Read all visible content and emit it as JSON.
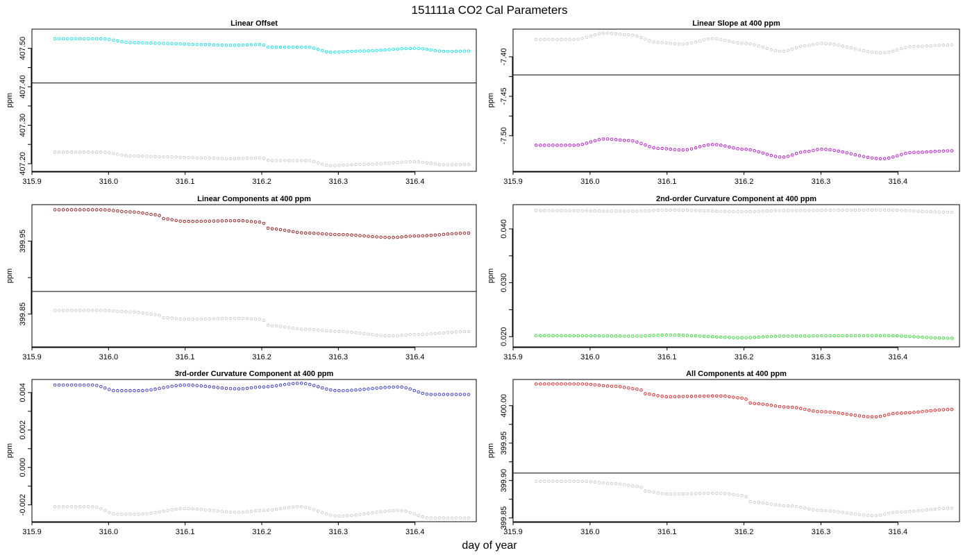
{
  "figure": {
    "title": "151111a   CO2 Cal Parameters",
    "xlabel": "day of year"
  },
  "colors": {
    "reference": "#c8c8c8",
    "frame": "#000000"
  },
  "chart_data": [
    {
      "type": "scatter",
      "title": "Linear Offset",
      "xlabel": "",
      "ylabel": "ppm",
      "xlim": [
        315.9,
        316.48
      ],
      "ylim": [
        407.18,
        407.55
      ],
      "xticks": [
        "315.9",
        "316.0",
        "316.1",
        "316.2",
        "316.3",
        "316.4"
      ],
      "yticks": [
        "407.20",
        "407.30",
        "407.40",
        "407.50"
      ],
      "hline": 407.41,
      "x_range": [
        315.93,
        316.47
      ],
      "n_points": 100,
      "series": [
        {
          "color": "#00e5ee",
          "knots": [
            [
              315.93,
              407.525
            ],
            [
              315.99,
              407.525
            ],
            [
              316.03,
              407.515
            ],
            [
              316.07,
              407.513
            ],
            [
              316.12,
              407.51
            ],
            [
              316.16,
              407.508
            ],
            [
              316.2,
              407.51
            ],
            [
              316.21,
              407.503
            ],
            [
              316.26,
              407.503
            ],
            [
              316.29,
              407.49
            ],
            [
              316.33,
              407.493
            ],
            [
              316.4,
              407.5
            ],
            [
              316.44,
              407.492
            ],
            [
              316.47,
              407.493
            ]
          ]
        },
        {
          "color": "#c8c8c8",
          "knots": [
            [
              315.93,
              407.23
            ],
            [
              315.99,
              407.23
            ],
            [
              316.03,
              407.22
            ],
            [
              316.07,
              407.218
            ],
            [
              316.12,
              407.215
            ],
            [
              316.16,
              407.213
            ],
            [
              316.2,
              407.215
            ],
            [
              316.21,
              407.208
            ],
            [
              316.26,
              407.208
            ],
            [
              316.29,
              407.195
            ],
            [
              316.33,
              407.198
            ],
            [
              316.4,
              407.205
            ],
            [
              316.44,
              407.197
            ],
            [
              316.47,
              407.198
            ]
          ]
        }
      ]
    },
    {
      "type": "scatter",
      "title": "Linear Slope at 400 ppm",
      "xlabel": "",
      "ylabel": "ppm",
      "xlim": [
        315.9,
        316.48
      ],
      "ylim": [
        -7.545,
        -7.365
      ],
      "xticks": [
        "315.9",
        "316.0",
        "316.1",
        "316.2",
        "316.3",
        "316.4"
      ],
      "yticks": [
        "-7.50",
        "-7.45",
        "-7.40"
      ],
      "hline": -7.423,
      "x_range": [
        315.93,
        316.47
      ],
      "n_points": 100,
      "series": [
        {
          "color": "#c8c8c8",
          "knots": [
            [
              315.93,
              -7.378
            ],
            [
              315.98,
              -7.378
            ],
            [
              316.02,
              -7.37
            ],
            [
              316.05,
              -7.372
            ],
            [
              316.09,
              -7.382
            ],
            [
              316.12,
              -7.384
            ],
            [
              316.16,
              -7.377
            ],
            [
              316.2,
              -7.383
            ],
            [
              316.25,
              -7.393
            ],
            [
              316.28,
              -7.386
            ],
            [
              316.3,
              -7.383
            ],
            [
              316.38,
              -7.395
            ],
            [
              316.42,
              -7.387
            ],
            [
              316.47,
              -7.385
            ]
          ]
        },
        {
          "color": "#c000e0",
          "knots": [
            [
              315.93,
              -7.512
            ],
            [
              315.98,
              -7.512
            ],
            [
              316.02,
              -7.504
            ],
            [
              316.05,
              -7.506
            ],
            [
              316.09,
              -7.516
            ],
            [
              316.12,
              -7.518
            ],
            [
              316.16,
              -7.511
            ],
            [
              316.2,
              -7.517
            ],
            [
              316.25,
              -7.527
            ],
            [
              316.28,
              -7.52
            ],
            [
              316.3,
              -7.517
            ],
            [
              316.38,
              -7.529
            ],
            [
              316.42,
              -7.521
            ],
            [
              316.47,
              -7.519
            ]
          ]
        }
      ]
    },
    {
      "type": "scatter",
      "title": "Linear Components at 400 ppm",
      "xlabel": "",
      "ylabel": "ppm",
      "xlim": [
        315.9,
        316.48
      ],
      "ylim": [
        399.805,
        400.0
      ],
      "xticks": [
        "315.9",
        "316.0",
        "316.1",
        "316.2",
        "316.3",
        "316.4"
      ],
      "yticks": [
        "399.85",
        "399.95"
      ],
      "hline": 399.881,
      "x_range": [
        315.93,
        316.47
      ],
      "n_points": 100,
      "series": [
        {
          "color": "#9b0d0d",
          "knots": [
            [
              315.93,
              399.993
            ],
            [
              315.99,
              399.993
            ],
            [
              316.03,
              399.99
            ],
            [
              316.065,
              399.986
            ],
            [
              316.07,
              399.981
            ],
            [
              316.1,
              399.977
            ],
            [
              316.17,
              399.978
            ],
            [
              316.2,
              399.976
            ],
            [
              316.21,
              399.967
            ],
            [
              316.26,
              399.961
            ],
            [
              316.3,
              399.959
            ],
            [
              316.37,
              399.955
            ],
            [
              316.4,
              399.957
            ],
            [
              316.47,
              399.961
            ]
          ]
        },
        {
          "color": "#c8c8c8",
          "knots": [
            [
              315.93,
              399.855
            ],
            [
              315.99,
              399.855
            ],
            [
              316.03,
              399.853
            ],
            [
              316.065,
              399.849
            ],
            [
              316.07,
              399.845
            ],
            [
              316.1,
              399.843
            ],
            [
              316.17,
              399.844
            ],
            [
              316.2,
              399.843
            ],
            [
              316.21,
              399.834
            ],
            [
              316.26,
              399.829
            ],
            [
              316.3,
              399.826
            ],
            [
              316.37,
              399.82
            ],
            [
              316.4,
              399.822
            ],
            [
              316.47,
              399.826
            ]
          ]
        }
      ]
    },
    {
      "type": "scatter",
      "title": "2nd-order Curvature Component at 400 ppm",
      "xlabel": "",
      "ylabel": "ppm",
      "xlim": [
        315.9,
        316.48
      ],
      "ylim": [
        0.0181,
        0.0445
      ],
      "xticks": [
        "315.9",
        "316.0",
        "316.1",
        "316.2",
        "316.3",
        "316.4"
      ],
      "yticks": [
        "0.020",
        "0.030",
        "0.040"
      ],
      "x_range": [
        315.93,
        316.47
      ],
      "n_points": 100,
      "series": [
        {
          "color": "#c8c8c8",
          "knots": [
            [
              315.93,
              0.0434
            ],
            [
              316.06,
              0.0433
            ],
            [
              316.1,
              0.0435
            ],
            [
              316.2,
              0.0432
            ],
            [
              316.25,
              0.0434
            ],
            [
              316.38,
              0.0435
            ],
            [
              316.47,
              0.0431
            ]
          ]
        },
        {
          "color": "#22dd22",
          "knots": [
            [
              315.93,
              0.0202
            ],
            [
              316.06,
              0.0201
            ],
            [
              316.1,
              0.0203
            ],
            [
              316.2,
              0.0198
            ],
            [
              316.25,
              0.0201
            ],
            [
              316.38,
              0.0202
            ],
            [
              316.47,
              0.0197
            ]
          ]
        }
      ]
    },
    {
      "type": "scatter",
      "title": "3rd-order Curvature Component at 400 ppm",
      "xlabel": "",
      "ylabel": "ppm",
      "xlim": [
        315.9,
        316.48
      ],
      "ylim": [
        -0.0029,
        0.0047
      ],
      "xticks": [
        "315.9",
        "316.0",
        "316.1",
        "316.2",
        "316.3",
        "316.4"
      ],
      "yticks": [
        "-0.002",
        "0.000",
        "0.002",
        "0.004"
      ],
      "x_range": [
        315.93,
        316.47
      ],
      "n_points": 100,
      "series": [
        {
          "color": "#2a2ae0",
          "knots": [
            [
              315.93,
              0.0044
            ],
            [
              315.98,
              0.0044
            ],
            [
              316.01,
              0.0041
            ],
            [
              316.04,
              0.0041
            ],
            [
              316.1,
              0.0044
            ],
            [
              316.17,
              0.0042
            ],
            [
              316.2,
              0.0043
            ],
            [
              316.25,
              0.0045
            ],
            [
              316.3,
              0.0041
            ],
            [
              316.38,
              0.0043
            ],
            [
              316.42,
              0.0039
            ],
            [
              316.47,
              0.0039
            ]
          ]
        },
        {
          "color": "#c8c8c8",
          "knots": [
            [
              315.93,
              -0.0021
            ],
            [
              315.98,
              -0.0021
            ],
            [
              316.01,
              -0.0025
            ],
            [
              316.04,
              -0.0025
            ],
            [
              316.1,
              -0.0022
            ],
            [
              316.17,
              -0.0024
            ],
            [
              316.2,
              -0.0023
            ],
            [
              316.25,
              -0.0021
            ],
            [
              316.3,
              -0.0026
            ],
            [
              316.38,
              -0.0023
            ],
            [
              316.42,
              -0.0027
            ],
            [
              316.47,
              -0.0027
            ]
          ]
        }
      ]
    },
    {
      "type": "scatter",
      "title": "All Components at 400 ppm",
      "xlabel": "",
      "ylabel": "ppm",
      "xlim": [
        315.9,
        316.48
      ],
      "ylim": [
        399.845,
        400.035
      ],
      "xticks": [
        "315.9",
        "316.0",
        "316.1",
        "316.2",
        "316.3",
        "316.4"
      ],
      "yticks": [
        "399.85",
        "399.90",
        "399.95",
        "400.00"
      ],
      "hline": 399.91,
      "x_range": [
        315.93,
        316.47
      ],
      "n_points": 100,
      "series": [
        {
          "color": "#ee1111",
          "knots": [
            [
              315.93,
              400.029
            ],
            [
              315.99,
              400.029
            ],
            [
              316.03,
              400.026
            ],
            [
              316.065,
              400.022
            ],
            [
              316.07,
              400.016
            ],
            [
              316.1,
              400.012
            ],
            [
              316.17,
              400.013
            ],
            [
              316.2,
              400.01
            ],
            [
              316.21,
              400.003
            ],
            [
              316.26,
              399.998
            ],
            [
              316.3,
              399.992
            ],
            [
              316.37,
              399.985
            ],
            [
              316.4,
              399.99
            ],
            [
              316.47,
              399.995
            ]
          ]
        },
        {
          "color": "#c8c8c8",
          "knots": [
            [
              315.93,
              399.899
            ],
            [
              315.99,
              399.899
            ],
            [
              316.03,
              399.896
            ],
            [
              316.065,
              399.892
            ],
            [
              316.07,
              399.886
            ],
            [
              316.1,
              399.882
            ],
            [
              316.17,
              399.883
            ],
            [
              316.2,
              399.88
            ],
            [
              316.21,
              399.871
            ],
            [
              316.26,
              399.866
            ],
            [
              316.3,
              399.86
            ],
            [
              316.37,
              399.853
            ],
            [
              316.4,
              399.858
            ],
            [
              316.47,
              399.863
            ]
          ]
        }
      ]
    }
  ]
}
